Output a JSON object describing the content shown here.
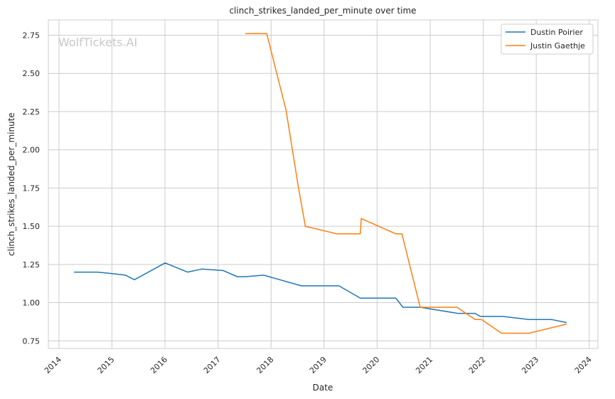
{
  "chart_data": {
    "type": "line",
    "title": "clinch_strikes_landed_per_minute over time",
    "xlabel": "Date",
    "ylabel": "clinch_strikes_landed_per_minute",
    "xlim": [
      "2013-10-20",
      "2024-03-01"
    ],
    "ylim": [
      0.7,
      2.85
    ],
    "x_ticks": [
      "2014",
      "2015",
      "2016",
      "2017",
      "2018",
      "2019",
      "2020",
      "2021",
      "2022",
      "2023",
      "2024"
    ],
    "y_ticks": [
      "0.75",
      "1.00",
      "1.25",
      "1.50",
      "1.75",
      "2.00",
      "2.25",
      "2.50",
      "2.75"
    ],
    "grid": true,
    "legend_position": "top-right",
    "watermark": "WolfTickets.AI",
    "series": [
      {
        "name": "Dustin Poirier",
        "color": "#1f77b4",
        "points": [
          [
            "2014-04-15",
            1.2
          ],
          [
            "2014-09-25",
            1.2
          ],
          [
            "2015-01-05",
            1.19
          ],
          [
            "2015-04-05",
            1.18
          ],
          [
            "2015-06-05",
            1.15
          ],
          [
            "2016-01-02",
            1.26
          ],
          [
            "2016-06-05",
            1.2
          ],
          [
            "2016-09-10",
            1.22
          ],
          [
            "2017-02-05",
            1.21
          ],
          [
            "2017-05-13",
            1.17
          ],
          [
            "2017-07-10",
            1.17
          ],
          [
            "2017-11-11",
            1.18
          ],
          [
            "2018-07-28",
            1.11
          ],
          [
            "2019-04-13",
            1.11
          ],
          [
            "2019-09-07",
            1.03
          ],
          [
            "2020-05-09",
            1.03
          ],
          [
            "2020-06-27",
            0.97
          ],
          [
            "2020-10-24",
            0.97
          ],
          [
            "2021-07-10",
            0.93
          ],
          [
            "2021-11-06",
            0.93
          ],
          [
            "2021-12-11",
            0.91
          ],
          [
            "2022-05-15",
            0.91
          ],
          [
            "2022-11-12",
            0.89
          ],
          [
            "2023-04-15",
            0.89
          ],
          [
            "2023-07-29",
            0.87
          ]
        ]
      },
      {
        "name": "Justin Gaethje",
        "color": "#ff7f0e",
        "points": [
          [
            "2017-07-07",
            2.76
          ],
          [
            "2017-12-02",
            2.76
          ],
          [
            "2018-04-14",
            2.26
          ],
          [
            "2018-07-07",
            1.76
          ],
          [
            "2018-08-25",
            1.5
          ],
          [
            "2019-03-30",
            1.45
          ],
          [
            "2019-09-07",
            1.45
          ],
          [
            "2019-09-14",
            1.55
          ],
          [
            "2020-05-09",
            1.45
          ],
          [
            "2020-06-20",
            1.45
          ],
          [
            "2020-10-24",
            0.97
          ],
          [
            "2021-07-04",
            0.97
          ],
          [
            "2021-11-06",
            0.89
          ],
          [
            "2021-12-20",
            0.89
          ],
          [
            "2022-05-07",
            0.8
          ],
          [
            "2022-11-12",
            0.8
          ],
          [
            "2023-07-29",
            0.86
          ]
        ]
      }
    ]
  }
}
